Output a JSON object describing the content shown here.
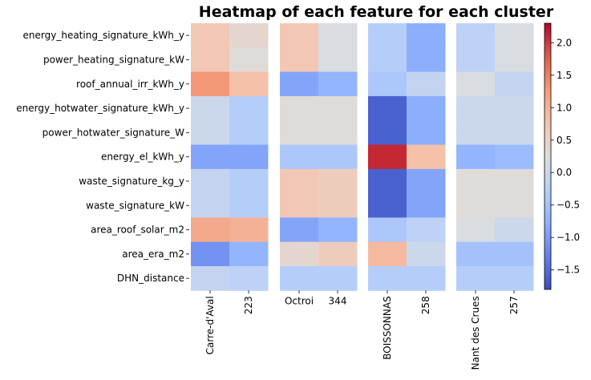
{
  "chart_data": {
    "type": "heatmap",
    "title": "Heatmap of each feature for each cluster",
    "features": [
      "energy_heating_signature_kWh_y",
      "power_heating_signature_kW",
      "roof_annual_irr_kWh_y",
      "energy_hotwater_signature_kWh_y",
      "power_hotwater_signature_W",
      "energy_el_kWh_y",
      "waste_signature_kg_y",
      "waste_signature_kW",
      "area_roof_solar_m2",
      "area_era_m2",
      "DHN_distance"
    ],
    "panels": [
      {
        "columns": [
          "Carre-d'Aval",
          "223"
        ],
        "values": [
          [
            0.7,
            0.4
          ],
          [
            0.7,
            0.3
          ],
          [
            1.3,
            0.8
          ],
          [
            0.0,
            -0.3
          ],
          [
            0.0,
            -0.3
          ],
          [
            -0.9,
            -0.9
          ],
          [
            -0.1,
            -0.3
          ],
          [
            -0.1,
            -0.3
          ],
          [
            1.1,
            1.0
          ],
          [
            -1.1,
            -0.7
          ],
          [
            -0.1,
            -0.2
          ]
        ]
      },
      {
        "columns": [
          "Octroi",
          "344"
        ],
        "values": [
          [
            0.7,
            0.2
          ],
          [
            0.7,
            0.2
          ],
          [
            -0.9,
            -0.7
          ],
          [
            0.3,
            0.3
          ],
          [
            0.3,
            0.3
          ],
          [
            -0.4,
            -0.4
          ],
          [
            0.7,
            0.6
          ],
          [
            0.7,
            0.6
          ],
          [
            -0.9,
            -0.7
          ],
          [
            0.4,
            0.6
          ],
          [
            -0.3,
            -0.3
          ]
        ]
      },
      {
        "columns": [
          "BOISSONNAS",
          "258"
        ],
        "values": [
          [
            -0.3,
            -0.8
          ],
          [
            -0.3,
            -0.8
          ],
          [
            -0.4,
            -0.1
          ],
          [
            -1.6,
            -0.8
          ],
          [
            -1.6,
            -0.8
          ],
          [
            2.1,
            0.8
          ],
          [
            -1.6,
            -0.9
          ],
          [
            -1.6,
            -0.9
          ],
          [
            -0.4,
            -0.2
          ],
          [
            0.9,
            0.0
          ],
          [
            -0.3,
            -0.3
          ]
        ]
      },
      {
        "columns": [
          "Nant des Crues",
          "257"
        ],
        "values": [
          [
            -0.2,
            0.2
          ],
          [
            -0.2,
            0.2
          ],
          [
            0.2,
            -0.1
          ],
          [
            0.0,
            0.0
          ],
          [
            0.0,
            0.0
          ],
          [
            -0.7,
            -0.6
          ],
          [
            0.3,
            0.3
          ],
          [
            0.3,
            0.3
          ],
          [
            0.2,
            0.0
          ],
          [
            -0.5,
            -0.5
          ],
          [
            -0.3,
            -0.3
          ]
        ]
      }
    ],
    "colorbar": {
      "colormap": "coolwarm",
      "vmin": -1.8,
      "vmax": 2.3,
      "ticks": [
        2.0,
        1.5,
        1.0,
        0.5,
        0.0,
        -0.5,
        -1.0,
        -1.5
      ],
      "tick_labels": [
        "2.0",
        "1.5",
        "1.0",
        "0.5",
        "0.0",
        "−0.5",
        "−1.0",
        "−1.5"
      ]
    }
  }
}
